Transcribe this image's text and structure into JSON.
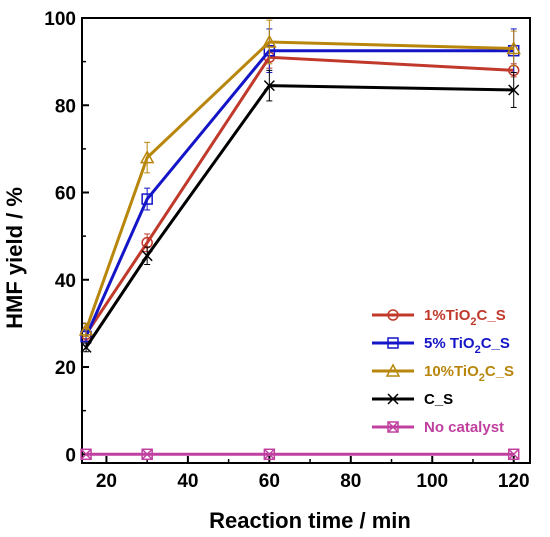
{
  "chart_data": {
    "type": "line",
    "xlabel": "Reaction time / min",
    "ylabel": "HMF yield / %",
    "xlim": [
      14,
      124
    ],
    "ylim": [
      -2,
      100
    ],
    "xticks": [
      20,
      40,
      60,
      80,
      100,
      120
    ],
    "yticks": [
      0,
      20,
      40,
      60,
      80,
      100
    ],
    "x": [
      15,
      30,
      60,
      120
    ],
    "grid": false,
    "legend_position": "bottom-right",
    "series": [
      {
        "name": "1%TiO2C_S",
        "name_parts": [
          "1%TiO",
          "2",
          "C_S"
        ],
        "values": [
          27.5,
          48.5,
          91,
          88
        ],
        "errors": [
          1.5,
          2,
          2.5,
          1.5
        ],
        "color": "#c0392b",
        "marker": "circle"
      },
      {
        "name": "5% TiO2C_S",
        "name_parts": [
          "5% TiO",
          "2",
          "C_S"
        ],
        "values": [
          27,
          58.5,
          92.5,
          92.5
        ],
        "errors": [
          1.5,
          2.5,
          5,
          5
        ],
        "color": "#1515c8",
        "marker": "square"
      },
      {
        "name": "10%TiO2C_S",
        "name_parts": [
          "10%TiO",
          "2",
          "C_S"
        ],
        "values": [
          28.5,
          68,
          94.5,
          93
        ],
        "errors": [
          1.5,
          3.5,
          5,
          4
        ],
        "color": "#b8860b",
        "marker": "triangle"
      },
      {
        "name": "C_S",
        "name_parts": [
          "C_S",
          "",
          ""
        ],
        "values": [
          24.5,
          45.5,
          84.5,
          83.5
        ],
        "errors": [
          1,
          2,
          3.5,
          4
        ],
        "color": "#000000",
        "marker": "x"
      },
      {
        "name": "No catalyst",
        "name_parts": [
          "No catalyst",
          "",
          ""
        ],
        "values": [
          0,
          0,
          0,
          0
        ],
        "errors": [
          0,
          0,
          0,
          0
        ],
        "color": "#c040a0",
        "marker": "boxx"
      }
    ]
  }
}
